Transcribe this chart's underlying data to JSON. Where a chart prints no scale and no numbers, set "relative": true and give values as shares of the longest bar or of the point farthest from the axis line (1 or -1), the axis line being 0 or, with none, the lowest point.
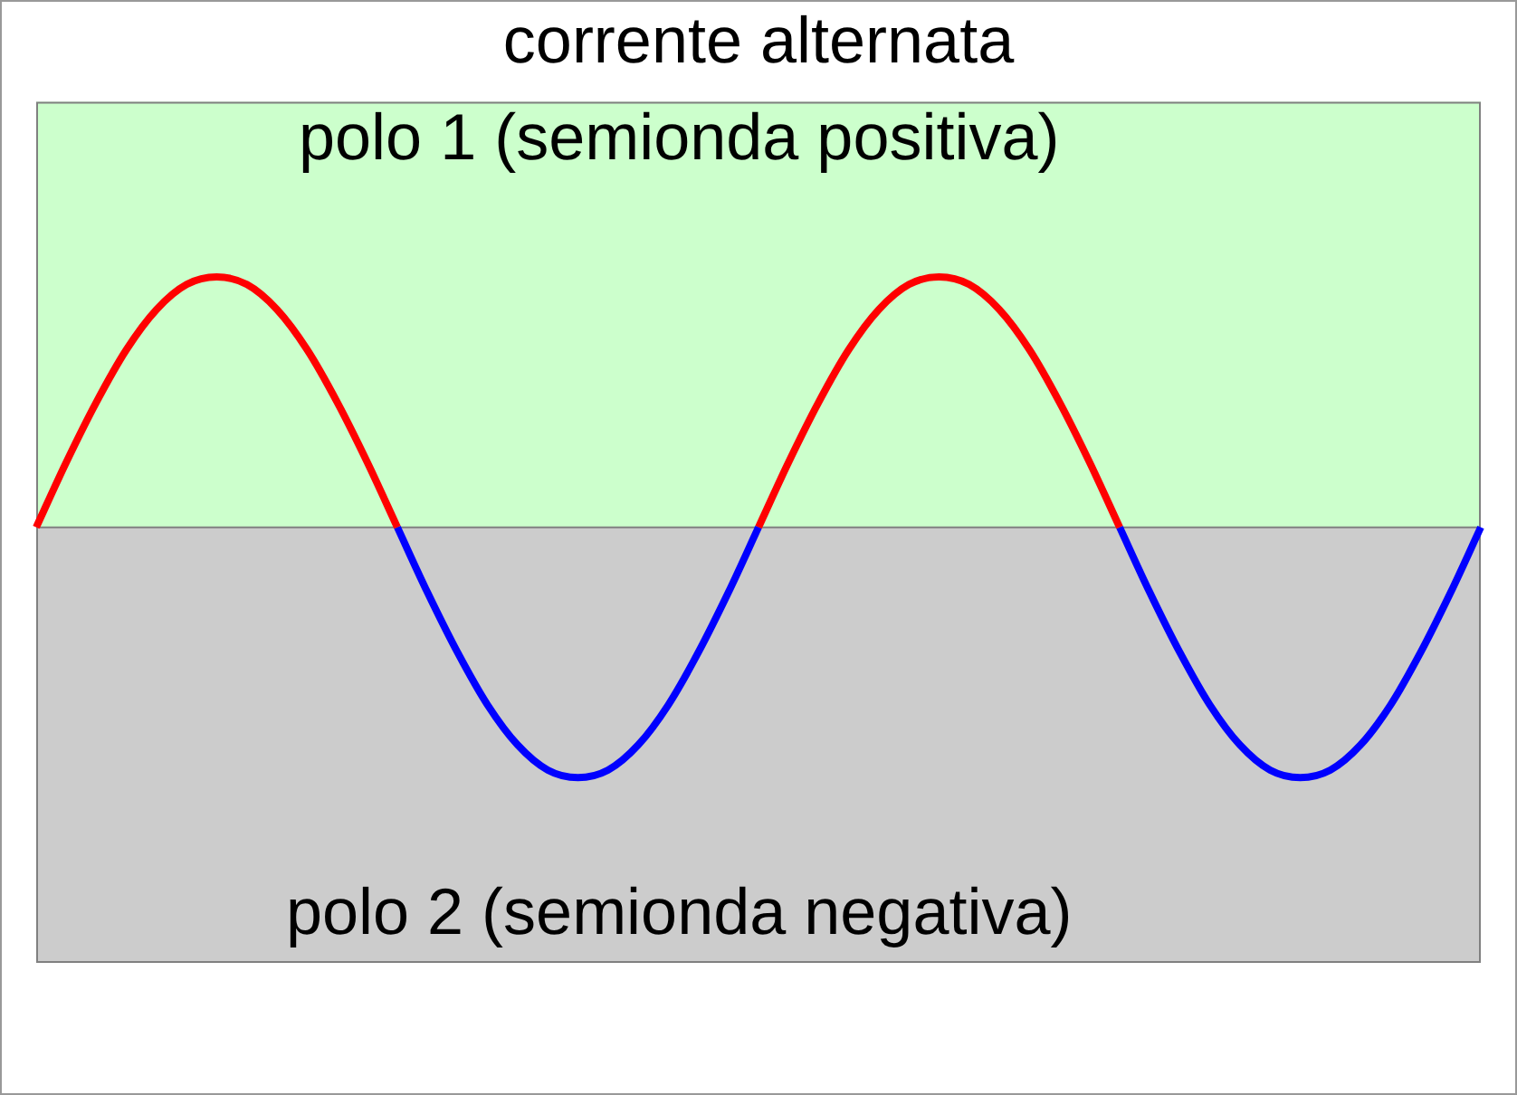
{
  "chart_data": {
    "type": "line",
    "title": "corrente alternata",
    "relative": true,
    "legend": false,
    "marker": "none",
    "line_style": "solid",
    "categories": [
      null,
      null,
      null,
      null,
      null,
      null,
      null,
      null,
      null,
      null,
      null,
      null,
      null,
      null,
      null,
      null,
      null,
      null,
      null,
      null,
      null,
      null,
      null,
      null,
      null,
      null,
      null,
      null,
      null,
      null,
      null,
      null,
      null,
      null,
      null,
      null,
      null,
      null,
      null,
      null,
      null,
      null,
      null,
      null,
      null,
      null,
      null,
      null,
      null
    ],
    "series": [
      {
        "color": "#ff0000",
        "values": [
          0,
          0.26,
          0.5,
          0.71,
          0.87,
          0.97,
          1,
          0.97,
          0.87,
          0.71,
          0.5,
          0.26,
          0,
          null,
          null,
          null,
          null,
          null,
          null,
          null,
          null,
          null,
          null,
          null,
          null,
          null,
          null,
          null,
          null,
          null,
          null,
          null,
          null,
          null,
          null,
          null,
          null,
          null,
          null,
          null,
          null,
          null,
          null,
          null,
          null,
          null,
          null,
          null,
          null
        ]
      },
      {
        "color": "#0000ff",
        "values": [
          null,
          null,
          null,
          null,
          null,
          null,
          null,
          null,
          null,
          null,
          null,
          null,
          0,
          -0.26,
          -0.5,
          -0.71,
          -0.87,
          -0.97,
          -1,
          -0.97,
          -0.87,
          -0.71,
          -0.5,
          -0.26,
          0,
          null,
          null,
          null,
          null,
          null,
          null,
          null,
          null,
          null,
          null,
          null,
          null,
          null,
          null,
          null,
          null,
          null,
          null,
          null,
          null,
          null,
          null,
          null,
          null
        ]
      },
      {
        "color": "#ff0000",
        "values": [
          null,
          null,
          null,
          null,
          null,
          null,
          null,
          null,
          null,
          null,
          null,
          null,
          null,
          null,
          null,
          null,
          null,
          null,
          null,
          null,
          null,
          null,
          null,
          null,
          0,
          0.26,
          0.5,
          0.71,
          0.87,
          0.97,
          1,
          0.97,
          0.87,
          0.71,
          0.5,
          0.26,
          0,
          null,
          null,
          null,
          null,
          null,
          null,
          null,
          null,
          null,
          null,
          null,
          null
        ]
      },
      {
        "color": "#0000ff",
        "values": [
          null,
          null,
          null,
          null,
          null,
          null,
          null,
          null,
          null,
          null,
          null,
          null,
          null,
          null,
          null,
          null,
          null,
          null,
          null,
          null,
          null,
          null,
          null,
          null,
          null,
          null,
          null,
          null,
          null,
          null,
          null,
          null,
          null,
          null,
          null,
          null,
          0,
          -0.26,
          -0.5,
          -0.71,
          -0.87,
          -0.97,
          -1,
          -0.97,
          -0.87,
          -0.71,
          -0.5,
          -0.26,
          0
        ]
      }
    ],
    "bands": [
      {
        "axis": "y",
        "from": 0,
        "to": 1.7,
        "label": "polo 1 (semionda positiva)",
        "color": "#ccffcc"
      },
      {
        "axis": "y",
        "from": -1.74,
        "to": 0,
        "label": "polo 2 (semionda negativa)",
        "color": "#cccccc"
      }
    ]
  }
}
